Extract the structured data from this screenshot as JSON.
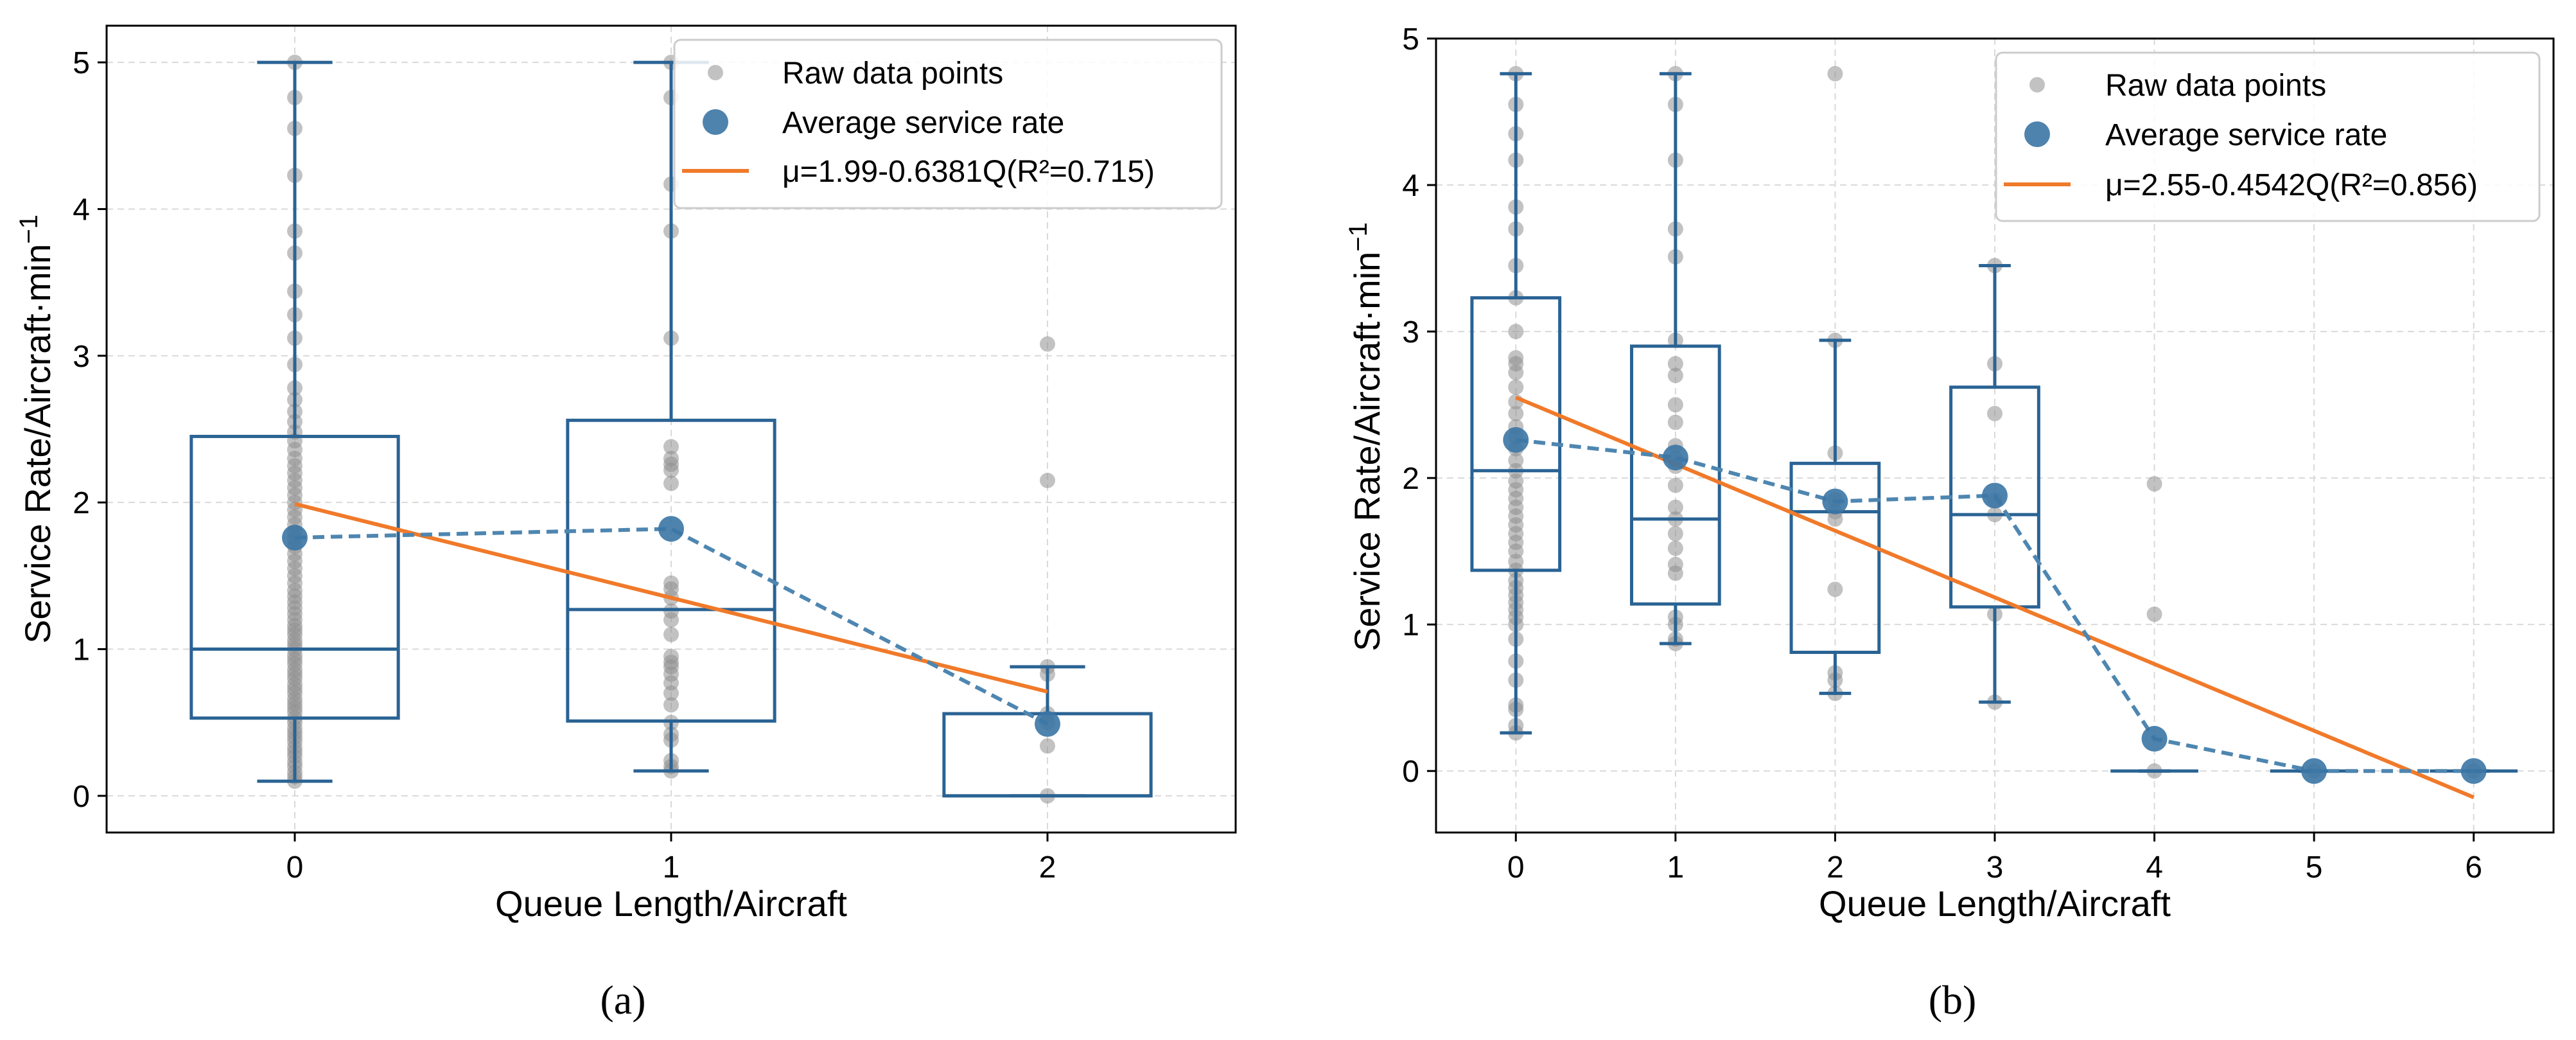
{
  "chart_data": [
    {
      "type": "box",
      "caption": "(a)",
      "xlabel": "Queue Length/Aircraft",
      "ylabel": "Service Rate/Aircraft·min",
      "ylabel_superscript": "−1",
      "xlim": [
        -0.5,
        2.5
      ],
      "ylim": [
        -0.25,
        5.25
      ],
      "x_ticks": [
        0,
        1,
        2
      ],
      "x_tick_labels": [
        "0",
        "1",
        "2"
      ],
      "y_ticks": [
        0,
        1,
        2,
        3,
        4,
        5
      ],
      "y_tick_labels": [
        "0",
        "1",
        "2",
        "3",
        "4",
        "5"
      ],
      "grid": true,
      "legend_position": "top-right",
      "legend": {
        "raw": "Raw data points",
        "avg": "Average service rate",
        "fit": "μ=1.99-0.6381Q(R²=0.715)"
      },
      "boxes": [
        {
          "x": 0,
          "whisker_low": 0.1,
          "q1": 0.53,
          "median": 1.0,
          "q3": 2.45,
          "whisker_high": 5.0
        },
        {
          "x": 1,
          "whisker_low": 0.17,
          "q1": 0.51,
          "median": 1.27,
          "q3": 2.56,
          "whisker_high": 5.0
        },
        {
          "x": 2,
          "whisker_low": 0.0,
          "q1": 0.0,
          "median": 0.0,
          "q3": 0.56,
          "whisker_high": 0.88
        }
      ],
      "raw_points": [
        {
          "x": 0,
          "y": [
            0.1,
            0.13,
            0.16,
            0.2,
            0.23,
            0.27,
            0.3,
            0.33,
            0.37,
            0.4,
            0.43,
            0.46,
            0.5,
            0.53,
            0.57,
            0.6,
            0.63,
            0.66,
            0.7,
            0.73,
            0.76,
            0.8,
            0.83,
            0.86,
            0.9,
            0.93,
            0.96,
            1.0,
            1.03,
            1.06,
            1.1,
            1.13,
            1.16,
            1.2,
            1.24,
            1.28,
            1.32,
            1.36,
            1.4,
            1.45,
            1.5,
            1.55,
            1.6,
            1.65,
            1.7,
            1.75,
            1.8,
            1.85,
            1.9,
            1.95,
            2.0,
            2.05,
            2.1,
            2.15,
            2.2,
            2.25,
            2.3,
            2.36,
            2.42,
            2.48,
            2.55,
            2.62,
            2.7,
            2.78,
            2.94,
            3.12,
            3.28,
            3.44,
            3.7,
            3.85,
            4.23,
            4.55,
            4.76,
            5.0
          ]
        },
        {
          "x": 1,
          "y": [
            0.17,
            0.2,
            0.24,
            0.38,
            0.42,
            0.5,
            0.62,
            0.7,
            0.77,
            0.83,
            0.88,
            0.91,
            0.95,
            1.1,
            1.2,
            1.26,
            1.35,
            1.41,
            1.45,
            2.13,
            2.22,
            2.26,
            2.3,
            2.38,
            3.12,
            3.85,
            4.17,
            4.76,
            5.0
          ]
        },
        {
          "x": 2,
          "y": [
            0.0,
            0.34,
            0.5,
            0.56,
            0.83,
            0.88,
            2.15,
            3.08
          ]
        }
      ],
      "averages": {
        "x": [
          0,
          1,
          2
        ],
        "y": [
          1.76,
          1.82,
          0.49
        ]
      },
      "fit_line": {
        "x": [
          0,
          2
        ],
        "y": [
          1.99,
          0.71
        ],
        "equation": "μ=1.99-0.6381Q",
        "r_squared": 0.715
      },
      "colors": {
        "box": "#2a6394",
        "avg_marker": "#3b75a5",
        "avg_line": "#4e86b0",
        "raw": "#8f8f8f",
        "fit": "#f07a2a",
        "grid": "#d9d9d9"
      }
    },
    {
      "type": "box",
      "caption": "(b)",
      "xlabel": "Queue Length/Aircraft",
      "ylabel": "Service Rate/Aircraft·min",
      "ylabel_superscript": "−1",
      "xlim": [
        -0.5,
        6.5
      ],
      "ylim": [
        -0.42,
        5.0
      ],
      "x_ticks": [
        0,
        1,
        2,
        3,
        4,
        5,
        6
      ],
      "x_tick_labels": [
        "0",
        "1",
        "2",
        "3",
        "4",
        "5",
        "6"
      ],
      "y_ticks": [
        0,
        1,
        2,
        3,
        4,
        5
      ],
      "y_tick_labels": [
        "0",
        "1",
        "2",
        "3",
        "4",
        "5"
      ],
      "grid": true,
      "legend_position": "top-right",
      "legend": {
        "raw": "Raw data points",
        "avg": "Average service rate",
        "fit": "μ=2.55-0.4542Q(R²=0.856)"
      },
      "boxes": [
        {
          "x": 0,
          "whisker_low": 0.26,
          "q1": 1.37,
          "median": 2.05,
          "q3": 3.23,
          "whisker_high": 4.76
        },
        {
          "x": 1,
          "whisker_low": 0.87,
          "q1": 1.14,
          "median": 1.72,
          "q3": 2.9,
          "whisker_high": 4.76
        },
        {
          "x": 2,
          "whisker_low": 0.53,
          "q1": 0.81,
          "median": 1.77,
          "q3": 2.1,
          "whisker_high": 2.94
        },
        {
          "x": 3,
          "whisker_low": 0.47,
          "q1": 1.12,
          "median": 1.75,
          "q3": 2.62,
          "whisker_high": 3.45
        },
        {
          "x": 4,
          "whisker_low": 0.0,
          "q1": 0.0,
          "median": 0.0,
          "q3": 0.0,
          "whisker_high": 0.0
        },
        {
          "x": 5,
          "whisker_low": 0.0,
          "q1": 0.0,
          "median": 0.0,
          "q3": 0.0,
          "whisker_high": 0.0
        },
        {
          "x": 6,
          "whisker_low": 0.0,
          "q1": 0.0,
          "median": 0.0,
          "q3": 0.0,
          "whisker_high": 0.0
        }
      ],
      "raw_points": [
        {
          "x": 0,
          "y": [
            0.26,
            0.31,
            0.42,
            0.45,
            0.62,
            0.75,
            0.9,
            1.0,
            1.05,
            1.1,
            1.15,
            1.2,
            1.25,
            1.3,
            1.37,
            1.43,
            1.5,
            1.56,
            1.62,
            1.68,
            1.74,
            1.8,
            1.86,
            1.92,
            1.98,
            2.05,
            2.12,
            2.2,
            2.28,
            2.35,
            2.44,
            2.52,
            2.62,
            2.72,
            2.78,
            2.82,
            3.0,
            3.23,
            3.45,
            3.7,
            3.85,
            4.17,
            4.35,
            4.55,
            4.76
          ]
        },
        {
          "x": 1,
          "y": [
            0.87,
            0.9,
            1.0,
            1.05,
            1.35,
            1.41,
            1.52,
            1.62,
            1.72,
            1.8,
            1.95,
            2.08,
            2.13,
            2.22,
            2.38,
            2.5,
            2.7,
            2.78,
            2.94,
            3.51,
            3.7,
            4.17,
            4.55,
            4.76
          ]
        },
        {
          "x": 2,
          "y": [
            0.53,
            0.62,
            0.67,
            1.24,
            1.72,
            1.77,
            1.85,
            2.17,
            2.94,
            4.76
          ]
        },
        {
          "x": 3,
          "y": [
            0.47,
            1.07,
            1.75,
            1.85,
            2.44,
            2.78,
            3.45
          ]
        },
        {
          "x": 4,
          "y": [
            0.0,
            1.07,
            1.96
          ]
        },
        {
          "x": 5,
          "y": [
            0.0
          ]
        },
        {
          "x": 6,
          "y": [
            0.0
          ]
        }
      ],
      "averages": {
        "x": [
          0,
          1,
          2,
          3,
          4,
          5,
          6
        ],
        "y": [
          2.26,
          2.14,
          1.84,
          1.88,
          0.22,
          0.0,
          0.0
        ]
      },
      "fit_line": {
        "x": [
          0,
          6
        ],
        "y": [
          2.55,
          -0.18
        ],
        "equation": "μ=2.55-0.4542Q",
        "r_squared": 0.856
      },
      "colors": {
        "box": "#2a6394",
        "avg_marker": "#3b75a5",
        "avg_line": "#4e86b0",
        "raw": "#8f8f8f",
        "fit": "#f07a2a",
        "grid": "#d9d9d9"
      }
    }
  ]
}
